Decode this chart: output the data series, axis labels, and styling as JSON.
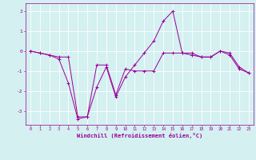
{
  "xlabel": "Windchill (Refroidissement éolien,°C)",
  "background_color": "#d4f0f0",
  "line_color": "#990099",
  "xlim": [
    -0.5,
    23.5
  ],
  "ylim": [
    -3.7,
    2.4
  ],
  "xticks": [
    0,
    1,
    2,
    3,
    4,
    5,
    6,
    7,
    8,
    9,
    10,
    11,
    12,
    13,
    14,
    15,
    16,
    17,
    18,
    19,
    20,
    21,
    22,
    23
  ],
  "yticks": [
    -3,
    -2,
    -1,
    0,
    1,
    2
  ],
  "series1_x": [
    0,
    1,
    2,
    3,
    4,
    5,
    6,
    7,
    8,
    9,
    10,
    11,
    12,
    13,
    14,
    15,
    16,
    17,
    18,
    19,
    20,
    21,
    22,
    23
  ],
  "series1_y": [
    0.0,
    -0.1,
    -0.2,
    -0.3,
    -0.3,
    -3.3,
    -3.3,
    -0.7,
    -0.7,
    -2.2,
    -0.9,
    -1.0,
    -1.0,
    -1.0,
    -0.1,
    -0.1,
    -0.1,
    -0.1,
    -0.3,
    -0.3,
    0.0,
    -0.2,
    -0.9,
    -1.1
  ],
  "series2_x": [
    0,
    1,
    2,
    3,
    4,
    5,
    6,
    7,
    8,
    9,
    10,
    11,
    12,
    13,
    14,
    15,
    16,
    17,
    18,
    19,
    20,
    21,
    22,
    23
  ],
  "series2_y": [
    0.0,
    -0.1,
    -0.2,
    -0.4,
    -1.6,
    -3.4,
    -3.3,
    -1.8,
    -0.8,
    -2.3,
    -1.3,
    -0.7,
    -0.1,
    0.5,
    1.5,
    2.0,
    -0.1,
    -0.2,
    -0.3,
    -0.3,
    0.0,
    -0.1,
    -0.8,
    -1.1
  ],
  "figsize": [
    3.2,
    2.0
  ],
  "dpi": 100
}
